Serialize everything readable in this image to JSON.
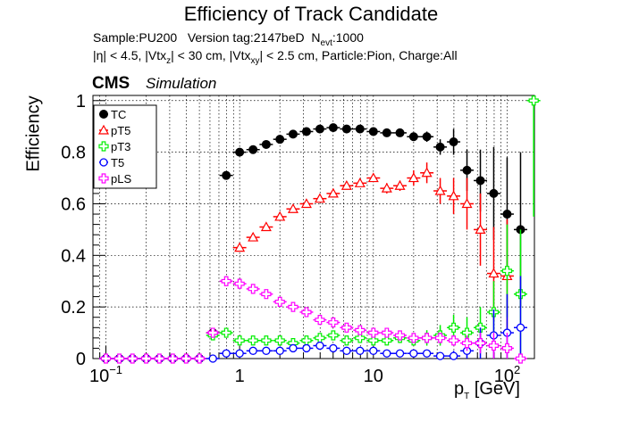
{
  "figure": {
    "title": "Efficiency of Track Candidate",
    "info_line1": {
      "sample": "Sample:PU200",
      "version": "Version tag:2147beD",
      "nevt_prefix": "N",
      "nevt_sub": "evt",
      "nevt_value": ":1000"
    },
    "info_line2": {
      "p1": "|η| < 4.5, |Vtx",
      "s1": "z",
      "p2": "| < 30 cm, |Vtx",
      "s2": "xy",
      "p3": "| < 2.5 cm, Particle:Pion, Charge:All"
    },
    "cms_label": "CMS",
    "simulation_label": "Simulation",
    "ylabel": "Efficiency",
    "xlabel_main": "p",
    "xlabel_sub": "T",
    "xlabel_unit": " [GeV]"
  },
  "chart_data": {
    "type": "scatter",
    "x_scale": "log",
    "xlim": [
      0.08,
      160
    ],
    "ylim": [
      0,
      1.02
    ],
    "grid": true,
    "legend_position": "top-left",
    "x_ticks": [
      {
        "value": 0.1,
        "base": "10",
        "exp": "−1"
      },
      {
        "value": 1,
        "base": "1",
        "exp": ""
      },
      {
        "value": 10,
        "base": "10",
        "exp": ""
      },
      {
        "value": 100,
        "base": "10",
        "exp": "2"
      }
    ],
    "y_ticks": [
      "0",
      "0.2",
      "0.4",
      "0.6",
      "0.8",
      "1"
    ],
    "y_tick_values": [
      0,
      0.2,
      0.4,
      0.6,
      0.8,
      1.0
    ],
    "series": [
      {
        "name": "TC",
        "color": "#000000",
        "marker": "filled-circle",
        "x": [
          0.1,
          0.126,
          0.158,
          0.2,
          0.251,
          0.316,
          0.398,
          0.501,
          0.631,
          0.794,
          1.0,
          1.26,
          1.58,
          2.0,
          2.51,
          3.16,
          3.98,
          5.01,
          6.31,
          7.94,
          10.0,
          12.6,
          15.8,
          20.0,
          25.1,
          31.6,
          39.8,
          50.1,
          63.1,
          79.4,
          100,
          126
        ],
        "y": [
          0,
          0,
          0,
          0,
          0,
          0,
          0,
          0,
          0.1,
          0.71,
          0.8,
          0.81,
          0.83,
          0.85,
          0.87,
          0.88,
          0.89,
          0.895,
          0.89,
          0.89,
          0.88,
          0.875,
          0.875,
          0.86,
          0.86,
          0.82,
          0.84,
          0.73,
          0.69,
          0.64,
          0.56,
          0.5
        ],
        "yerr": [
          0,
          0,
          0,
          0,
          0,
          0,
          0,
          0,
          0.01,
          0.01,
          0.01,
          0.01,
          0.01,
          0.01,
          0.01,
          0.01,
          0.01,
          0.01,
          0.01,
          0.01,
          0.01,
          0.01,
          0.01,
          0.01,
          0.02,
          0.03,
          0.05,
          0.08,
          0.12,
          0.18,
          0.22,
          0.3
        ]
      },
      {
        "name": "pT5",
        "color": "#ff0000",
        "marker": "open-triangle",
        "x": [
          1.0,
          1.26,
          1.58,
          2.0,
          2.51,
          3.16,
          3.98,
          5.01,
          6.31,
          7.94,
          10.0,
          12.6,
          15.8,
          20.0,
          25.1,
          31.6,
          39.8,
          50.1,
          63.1,
          79.4,
          100
        ],
        "y": [
          0.43,
          0.47,
          0.51,
          0.55,
          0.58,
          0.6,
          0.62,
          0.64,
          0.67,
          0.68,
          0.7,
          0.66,
          0.67,
          0.7,
          0.72,
          0.65,
          0.63,
          0.6,
          0.5,
          0.33,
          0.32
        ],
        "yerr": [
          0.01,
          0.01,
          0.01,
          0.01,
          0.01,
          0.01,
          0.01,
          0.01,
          0.01,
          0.01,
          0.01,
          0.02,
          0.02,
          0.03,
          0.04,
          0.05,
          0.07,
          0.1,
          0.14,
          0.18,
          0.22
        ]
      },
      {
        "name": "pT3",
        "color": "#00ee00",
        "marker": "open-cross",
        "x": [
          0.631,
          0.794,
          1.0,
          1.26,
          1.58,
          2.0,
          2.51,
          3.16,
          3.98,
          5.01,
          6.31,
          7.94,
          10.0,
          12.6,
          15.8,
          20.0,
          25.1,
          31.6,
          39.8,
          50.1,
          63.1,
          79.4,
          100,
          126,
          158
        ],
        "y": [
          0.09,
          0.1,
          0.07,
          0.07,
          0.07,
          0.07,
          0.06,
          0.07,
          0.08,
          0.09,
          0.07,
          0.08,
          0.07,
          0.07,
          0.08,
          0.07,
          0.08,
          0.09,
          0.12,
          0.1,
          0.12,
          0.18,
          0.34,
          0.25,
          1.0
        ],
        "yerr": [
          0.01,
          0.01,
          0.01,
          0.01,
          0.01,
          0.01,
          0.01,
          0.01,
          0.01,
          0.01,
          0.01,
          0.01,
          0.01,
          0.01,
          0.02,
          0.02,
          0.03,
          0.04,
          0.05,
          0.06,
          0.08,
          0.12,
          0.18,
          0.25,
          0.45
        ]
      },
      {
        "name": "T5",
        "color": "#0000ff",
        "marker": "open-circle",
        "x": [
          0.1,
          0.126,
          0.158,
          0.2,
          0.251,
          0.316,
          0.398,
          0.501,
          0.631,
          0.794,
          1.0,
          1.26,
          1.58,
          2.0,
          2.51,
          3.16,
          3.98,
          5.01,
          6.31,
          7.94,
          10.0,
          12.6,
          15.8,
          20.0,
          25.1,
          31.6,
          39.8,
          50.1,
          63.1,
          79.4,
          100,
          126
        ],
        "y": [
          0,
          0,
          0,
          0,
          0,
          0,
          0,
          0,
          0,
          0.02,
          0.02,
          0.03,
          0.03,
          0.03,
          0.04,
          0.04,
          0.05,
          0.04,
          0.03,
          0.03,
          0.03,
          0.02,
          0.02,
          0.02,
          0.02,
          0.01,
          0.01,
          0.03,
          0.06,
          0.09,
          0.1,
          0.12
        ],
        "yerr": [
          0,
          0,
          0,
          0,
          0,
          0,
          0,
          0,
          0,
          0.005,
          0.005,
          0.005,
          0.005,
          0.005,
          0.005,
          0.005,
          0.005,
          0.005,
          0.005,
          0.005,
          0.005,
          0.005,
          0.005,
          0.01,
          0.01,
          0.01,
          0.02,
          0.04,
          0.06,
          0.1,
          0.15,
          0.2
        ]
      },
      {
        "name": "pLS",
        "color": "#ff00ff",
        "marker": "open-cross",
        "x": [
          0.1,
          0.126,
          0.158,
          0.2,
          0.251,
          0.316,
          0.398,
          0.501,
          0.631,
          0.794,
          1.0,
          1.26,
          1.58,
          2.0,
          2.51,
          3.16,
          3.98,
          5.01,
          6.31,
          7.94,
          10.0,
          12.6,
          15.8,
          20.0,
          25.1,
          31.6,
          39.8,
          50.1,
          63.1,
          79.4,
          100,
          126
        ],
        "y": [
          0,
          0,
          0,
          0,
          0,
          0,
          0,
          0,
          0.1,
          0.3,
          0.29,
          0.27,
          0.25,
          0.22,
          0.2,
          0.18,
          0.15,
          0.14,
          0.12,
          0.11,
          0.1,
          0.1,
          0.09,
          0.08,
          0.08,
          0.08,
          0.07,
          0.06,
          0.06,
          0.05,
          0.04,
          0.0
        ],
        "yerr": [
          0,
          0,
          0,
          0,
          0,
          0,
          0,
          0,
          0.01,
          0.01,
          0.01,
          0.01,
          0.01,
          0.01,
          0.01,
          0.01,
          0.01,
          0.01,
          0.01,
          0.01,
          0.01,
          0.01,
          0.01,
          0.01,
          0.02,
          0.02,
          0.02,
          0.03,
          0.04,
          0.05,
          0.06,
          0.0
        ]
      }
    ]
  }
}
